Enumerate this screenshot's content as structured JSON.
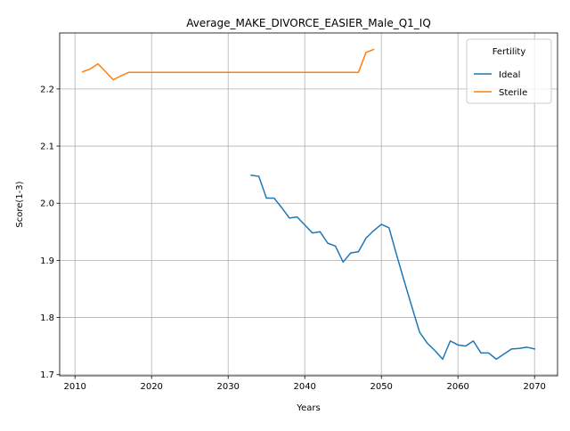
{
  "chart_data": {
    "type": "line",
    "title": "Average_MAKE_DIVORCE_EASIER_Male_Q1_IQ",
    "xlabel": "Years",
    "ylabel": "Score(1-3)",
    "xlim": [
      2008,
      2073
    ],
    "ylim": [
      1.698,
      2.298
    ],
    "xticks": [
      2010,
      2020,
      2030,
      2040,
      2050,
      2060,
      2070
    ],
    "yticks": [
      1.7,
      1.8,
      1.9,
      2.0,
      2.1,
      2.2
    ],
    "ytick_labels": [
      "1.7",
      "1.8",
      "1.9",
      "2.0",
      "2.1",
      "2.2"
    ],
    "grid": true,
    "legend": {
      "title": "Fertility",
      "position": "top-right"
    },
    "series": [
      {
        "name": "Ideal",
        "color": "#1f77b4",
        "x": [
          2033,
          2034,
          2035,
          2036,
          2037,
          2038,
          2039,
          2040,
          2041,
          2042,
          2043,
          2044,
          2045,
          2046,
          2047,
          2048,
          2049,
          2050,
          2051,
          2052,
          2053,
          2054,
          2055,
          2056,
          2057,
          2058,
          2059,
          2060,
          2061,
          2062,
          2063,
          2064,
          2065,
          2066,
          2067,
          2068,
          2069,
          2070
        ],
        "y": [
          2.049,
          2.047,
          2.009,
          2.009,
          1.992,
          1.974,
          1.976,
          1.962,
          1.948,
          1.95,
          1.93,
          1.925,
          1.897,
          1.913,
          1.915,
          1.939,
          1.952,
          1.963,
          1.957,
          1.909,
          1.863,
          1.818,
          1.774,
          1.755,
          1.742,
          1.727,
          1.759,
          1.752,
          1.75,
          1.759,
          1.738,
          1.738,
          1.727,
          1.736,
          1.745,
          1.746,
          1.748,
          1.745
        ]
      },
      {
        "name": "Sterile",
        "color": "#ff7f0e",
        "x": [
          2011,
          2012,
          2013,
          2014,
          2015,
          2016,
          2017,
          2018,
          2019,
          2020,
          2021,
          2022,
          2023,
          2024,
          2025,
          2026,
          2027,
          2028,
          2029,
          2030,
          2031,
          2032,
          2033,
          2034,
          2035,
          2036,
          2037,
          2038,
          2039,
          2040,
          2041,
          2042,
          2043,
          2044,
          2045,
          2046,
          2047,
          2048,
          2049
        ],
        "y": [
          2.23,
          2.235,
          2.244,
          2.23,
          2.216,
          2.223,
          2.229,
          2.229,
          2.229,
          2.229,
          2.229,
          2.229,
          2.229,
          2.229,
          2.229,
          2.229,
          2.229,
          2.229,
          2.229,
          2.229,
          2.229,
          2.229,
          2.229,
          2.229,
          2.229,
          2.229,
          2.229,
          2.229,
          2.229,
          2.229,
          2.229,
          2.229,
          2.229,
          2.229,
          2.229,
          2.229,
          2.229,
          2.264,
          2.269
        ]
      }
    ]
  }
}
